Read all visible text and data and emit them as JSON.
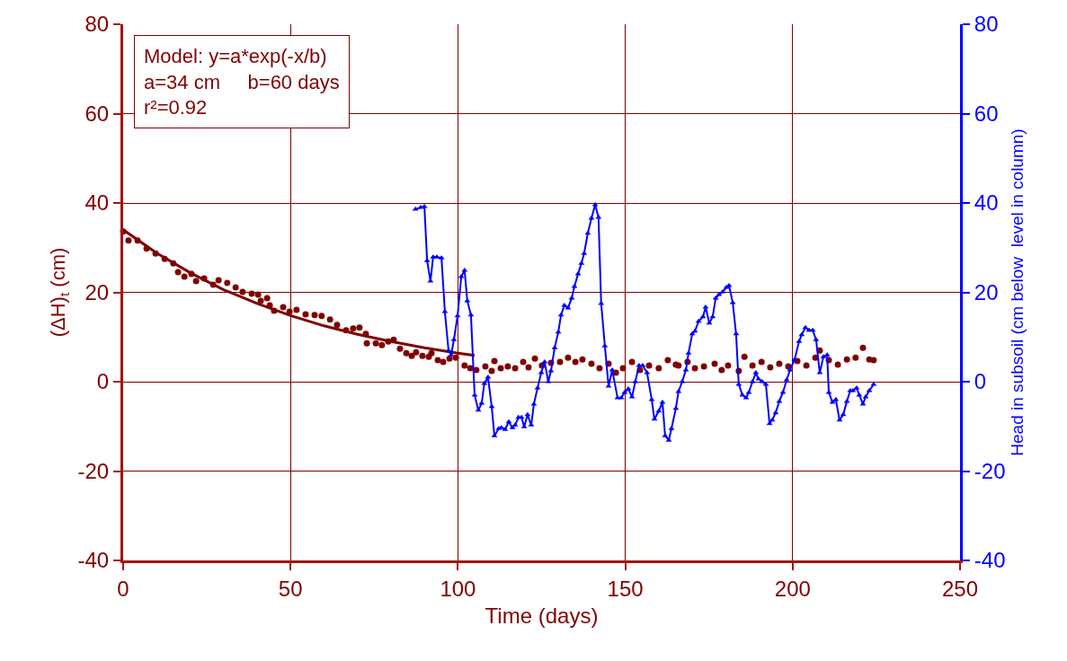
{
  "chart_data": {
    "type": "scatter",
    "xlabel": "Time (days)",
    "ylabel": "(ΔH)$_{t}$ (cm)",
    "y2label": "Head in subsoil (cm below  level in column)",
    "annotations": [
      "Model: y=a*exp(-x/b)",
      "a=34 cm     b=60 days",
      "r²=0.92"
    ],
    "xlim": [
      0,
      250
    ],
    "xticks": [
      0,
      50,
      100,
      150,
      200,
      250
    ],
    "ylim": [
      -40,
      80
    ],
    "yticks": [
      -40,
      -20,
      0,
      20,
      40,
      60,
      80
    ],
    "y2lim": [
      -40,
      80
    ],
    "y2ticks": [
      -40,
      -20,
      0,
      20,
      40,
      60,
      80
    ],
    "grid": true,
    "series": [
      {
        "marker": "circle",
        "color": "#800000",
        "x": [
          0,
          1.6,
          4.3,
          7,
          9.7,
          12.4,
          15,
          16.4,
          18.3,
          20.4,
          21.8,
          24.2,
          26.9,
          28.5,
          31.1,
          33.6,
          35.7,
          38.4,
          40.3,
          41.1,
          43,
          43.8,
          45.1,
          47.8,
          49.7,
          51.8,
          54.5,
          57.2,
          59.3,
          61.8,
          63.9,
          66.6,
          68.7,
          70.6,
          72.5,
          72.8,
          75.5,
          77.3,
          79.2,
          80.8,
          82.7,
          84.6,
          86.2,
          87.5,
          89.4,
          91.3,
          92.1,
          94,
          95.6,
          97.5,
          99.4,
          102,
          103.7,
          105.5,
          108.2,
          110.1,
          110.9,
          112.8,
          114.9,
          117.1,
          119.5,
          121.1,
          123,
          125.1,
          127.8,
          130.5,
          132.9,
          135.1,
          137.2,
          139.9,
          142.3,
          145,
          147.2,
          149.3,
          152,
          154.4,
          157.1,
          160,
          162.7,
          165.1,
          165.9,
          168.6,
          170.8,
          173.5,
          176.7,
          178.8,
          180.7,
          183.9,
          185.6,
          188,
          190.7,
          193.3,
          196,
          198.7,
          201.4,
          204.1,
          206.8,
          208.1,
          210.8,
          213.5,
          216.2,
          218.8,
          221,
          222.9,
          224.2
        ],
        "values": [
          33.6,
          31.6,
          31.6,
          29.8,
          28.7,
          27.5,
          26.5,
          24.5,
          23.5,
          24.1,
          22.5,
          23.1,
          21.7,
          22.7,
          22.1,
          21.1,
          20.1,
          19.7,
          19.5,
          18.1,
          18.7,
          17.1,
          15.9,
          16.7,
          15.7,
          16.1,
          15.1,
          14.9,
          14.7,
          13.9,
          12.7,
          11.5,
          11.9,
          12.1,
          10.7,
          8.6,
          8.6,
          8.2,
          9,
          9.4,
          7.4,
          6.4,
          5.8,
          6.6,
          5.8,
          5.6,
          6.4,
          4.8,
          4.4,
          5.2,
          5.4,
          3.6,
          3,
          2.6,
          3.4,
          2.4,
          4.6,
          3,
          3.4,
          3,
          4.4,
          3.2,
          5.2,
          3.6,
          4.2,
          4.4,
          5.4,
          4.4,
          5,
          4,
          3,
          4,
          2,
          3,
          4.4,
          2.6,
          3.6,
          3,
          4.8,
          3.8,
          3.6,
          4.4,
          3,
          3.4,
          4,
          2.6,
          3.6,
          2.4,
          5.6,
          3.6,
          4.4,
          3.2,
          4,
          3.4,
          4.6,
          3.6,
          5.4,
          7,
          4.8,
          3.8,
          5,
          5.4,
          7.6,
          5,
          4.8
        ]
      },
      {
        "type": "line",
        "marker": "none",
        "color": "#800000",
        "x": [
          0,
          10,
          20,
          30,
          40,
          50,
          60,
          70,
          80,
          90,
          100,
          105
        ],
        "values": [
          34,
          28.8,
          24.4,
          20.6,
          17.5,
          14.8,
          12.5,
          10.6,
          9,
          7.6,
          6.4,
          5.9
        ]
      },
      {
        "type": "line",
        "marker": "triangle",
        "axis": "y2",
        "color": "#0000ff",
        "x": [
          87.3,
          88.9,
          90,
          90.8,
          91.8,
          92.6,
          93.7,
          95.1,
          96.1,
          97.2,
          98,
          98.8,
          99.9,
          101,
          102,
          102.8,
          103.9,
          105,
          106.1,
          107.1,
          107.9,
          109,
          110.1,
          110.9,
          112.2,
          113,
          114.1,
          115.2,
          116.3,
          117.1,
          118.1,
          119,
          119.8,
          120.8,
          121.9,
          122.7,
          123.8,
          124.9,
          125.9,
          127,
          127.8,
          128.9,
          130,
          130.8,
          131.8,
          132.9,
          134,
          134.8,
          135.9,
          136.9,
          137.7,
          138.8,
          139.9,
          141,
          142,
          142.8,
          143.9,
          145,
          146.1,
          147.7,
          148.8,
          149.8,
          150.9,
          152,
          153,
          154.1,
          155.2,
          156.5,
          157.9,
          158.7,
          160,
          161.1,
          161.9,
          163,
          163.8,
          165.1,
          165.9,
          167,
          168.1,
          168.9,
          170,
          170.8,
          171.9,
          173.2,
          174,
          175.1,
          176.1,
          177,
          178,
          179.1,
          180.2,
          181,
          182.1,
          183.1,
          183.9,
          185,
          186.1,
          186.9,
          188,
          189,
          189.8,
          190.9,
          192,
          193.1,
          193.9,
          194.9,
          196,
          197.1,
          198.2,
          199.2,
          200.6,
          201.9,
          202.7,
          203.8,
          204.9,
          206,
          207,
          208.1,
          209.2,
          210.3,
          210.8,
          211.9,
          212.9,
          214,
          215.1,
          216.2,
          217.2,
          218,
          219.1,
          219.9,
          221,
          221.8,
          222.9,
          224.2
        ],
        "values": [
          38.6,
          39,
          39.2,
          27.1,
          22.5,
          27.9,
          27.9,
          27.7,
          15.7,
          7,
          6,
          9.4,
          14.7,
          23.5,
          24.9,
          18.1,
          14.9,
          -3,
          -6.4,
          -4.8,
          -0.4,
          1,
          -5.6,
          -12.1,
          -10.5,
          -10.3,
          -10.7,
          -9,
          -10.3,
          -9.7,
          -8,
          -8,
          -10.1,
          -7.4,
          -9.7,
          -5,
          -1.4,
          2,
          4.4,
          0,
          2.4,
          7.6,
          11.1,
          14.9,
          17.1,
          16.5,
          18.7,
          21.3,
          24.1,
          26.5,
          28.7,
          33.2,
          36.6,
          39.6,
          36.8,
          17.5,
          8,
          -1,
          2.6,
          -3.6,
          -3.6,
          -2.4,
          -1.6,
          -3.4,
          0,
          3.6,
          3.6,
          2,
          -4,
          -8.4,
          -6.6,
          -4.6,
          -12.1,
          -13.1,
          -10.5,
          -6,
          -2.2,
          0,
          2.6,
          6.4,
          10.7,
          11.3,
          13.5,
          14.5,
          16.7,
          13.1,
          14.5,
          18.7,
          19.5,
          20.1,
          21.1,
          21.5,
          17.7,
          10.7,
          -0.6,
          -3,
          -3.6,
          -2.4,
          0,
          2,
          0.6,
          0,
          -0.6,
          -9.4,
          -8.6,
          -7,
          -4.4,
          -2.4,
          0.4,
          2.6,
          5,
          9,
          10.5,
          12.1,
          11.5,
          11.5,
          9.4,
          2,
          5.6,
          6,
          -2.4,
          -4.6,
          -4,
          -8.6,
          -7.4,
          -4.4,
          -2,
          -2,
          -1.4,
          -3,
          -5,
          -3.4,
          -2,
          -0.6
        ]
      }
    ]
  }
}
